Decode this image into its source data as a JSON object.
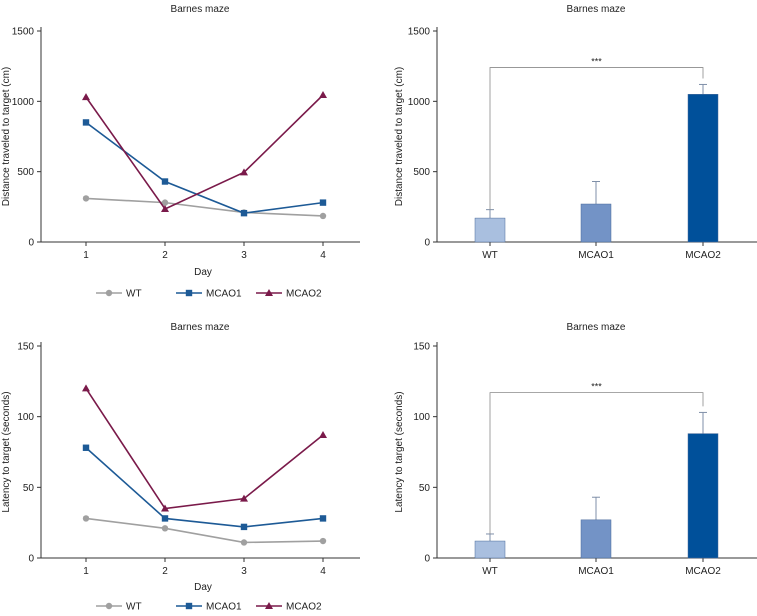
{
  "colors": {
    "WT": "#a0a0a0",
    "MCAO1": "#1d5a96",
    "MCAO2": "#7a1a4a",
    "bar_WT": "#a9bfdf",
    "bar_MCAO1": "#7393c6",
    "bar_MCAO2": "#00509a",
    "axis": "#333333"
  },
  "chart_data": [
    {
      "id": "distance-line",
      "type": "line",
      "title": "Barnes maze",
      "xlabel": "Day",
      "ylabel": "Distance traveled to target (cm)",
      "x": [
        1,
        2,
        3,
        4
      ],
      "xticks": [
        "1",
        "2",
        "3",
        "4"
      ],
      "ylim": [
        0,
        1500
      ],
      "yticks": [
        0,
        500,
        1000,
        1500
      ],
      "series": [
        {
          "name": "WT",
          "marker": "circle",
          "values": [
            310,
            280,
            210,
            185
          ]
        },
        {
          "name": "MCAO1",
          "marker": "square",
          "values": [
            850,
            430,
            205,
            280
          ]
        },
        {
          "name": "MCAO2",
          "marker": "triangle",
          "values": [
            1030,
            235,
            495,
            1045
          ]
        }
      ],
      "legend": [
        "WT",
        "MCAO1",
        "MCAO2"
      ]
    },
    {
      "id": "distance-bar",
      "type": "bar",
      "title": "Barnes maze",
      "xlabel": "",
      "ylabel": "Distance traveled to target (cm)",
      "categories": [
        "WT",
        "MCAO1",
        "MCAO2"
      ],
      "values": [
        170,
        270,
        1050
      ],
      "errors": [
        60,
        160,
        70
      ],
      "ylim": [
        0,
        1500
      ],
      "yticks": [
        0,
        500,
        1000,
        1500
      ],
      "significance": {
        "from": "WT",
        "to": "MCAO2",
        "label": "***",
        "level": 1240
      }
    },
    {
      "id": "latency-line",
      "type": "line",
      "title": "Barnes maze",
      "xlabel": "Day",
      "ylabel": "Latency to target (seconds)",
      "x": [
        1,
        2,
        3,
        4
      ],
      "xticks": [
        "1",
        "2",
        "3",
        "4"
      ],
      "ylim": [
        0,
        150
      ],
      "yticks": [
        0,
        50,
        100,
        150
      ],
      "series": [
        {
          "name": "WT",
          "marker": "circle",
          "values": [
            28,
            21,
            11,
            12
          ]
        },
        {
          "name": "MCAO1",
          "marker": "square",
          "values": [
            78,
            28,
            22,
            28
          ]
        },
        {
          "name": "MCAO2",
          "marker": "triangle",
          "values": [
            120,
            35,
            42,
            87
          ]
        }
      ],
      "legend": [
        "WT",
        "MCAO1",
        "MCAO2"
      ]
    },
    {
      "id": "latency-bar",
      "type": "bar",
      "title": "Barnes maze",
      "xlabel": "",
      "ylabel": "Latency to target (seconds)",
      "categories": [
        "WT",
        "MCAO1",
        "MCAO2"
      ],
      "values": [
        12,
        27,
        88
      ],
      "errors": [
        5,
        16,
        15
      ],
      "ylim": [
        0,
        150
      ],
      "yticks": [
        0,
        50,
        100,
        150
      ],
      "significance": {
        "from": "WT",
        "to": "MCAO2",
        "label": "***",
        "level": 117
      }
    }
  ]
}
